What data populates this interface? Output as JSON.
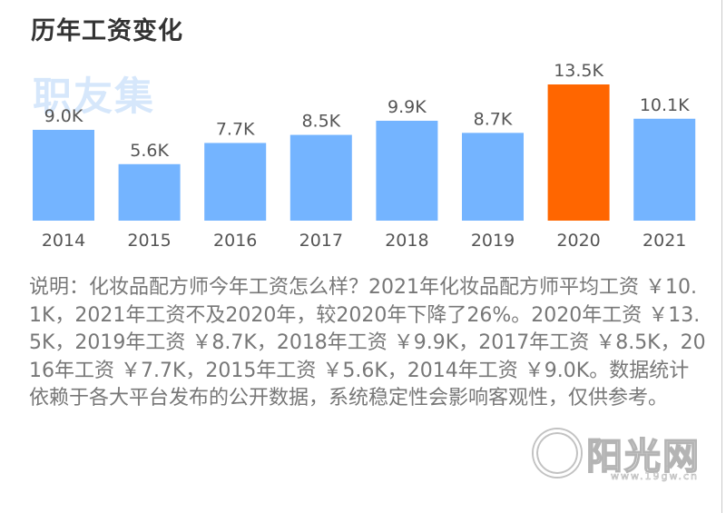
{
  "title": "历年工资变化",
  "watermark_top": "职友集",
  "watermark_bottom": "阳光网",
  "watermark_bottom_url": "www.19gw.cn",
  "colors": {
    "bar": "#74b4ff",
    "bar_highlight": "#ff6600",
    "label_text": "#555555",
    "title_text": "#333333",
    "description_text": "#777777"
  },
  "chart_data": {
    "type": "bar",
    "categories": [
      "2014",
      "2015",
      "2016",
      "2017",
      "2018",
      "2019",
      "2020",
      "2021"
    ],
    "values": [
      9.0,
      5.6,
      7.7,
      8.5,
      9.9,
      8.7,
      13.5,
      10.1
    ],
    "data_labels": [
      "9.0K",
      "5.6K",
      "7.7K",
      "8.5K",
      "9.9K",
      "8.7K",
      "13.5K",
      "10.1K"
    ],
    "highlight_category": "2020",
    "title": "历年工资变化",
    "xlabel": "",
    "ylabel": "",
    "ylim": [
      0,
      13.5
    ],
    "grid": false,
    "legend": "none"
  },
  "description": "说明：化妆品配方师今年工资怎么样？2021年化妆品配方师平均工资 ￥10.1K，2021年工资不及2020年，较2020年下降了26%。2020年工资 ￥13.5K，2019年工资 ￥8.7K，2018年工资 ￥9.9K，2017年工资 ￥8.5K，2016年工资 ￥7.7K，2015年工资 ￥5.6K，2014年工资 ￥9.0K。数据统计依赖于各大平台发布的公开数据，系统稳定性会影响客观性，仅供参考。"
}
